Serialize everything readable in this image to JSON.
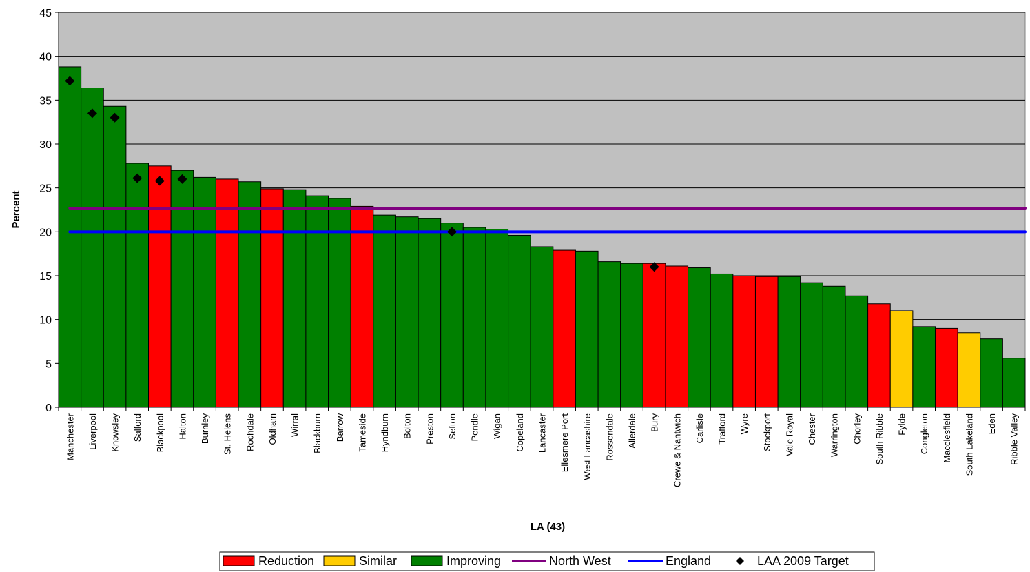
{
  "chart_data": {
    "type": "bar",
    "title": "",
    "xlabel": "LA (43)",
    "ylabel": "Percent",
    "ylim": [
      0,
      45
    ],
    "yticks": [
      0,
      5,
      10,
      15,
      20,
      25,
      30,
      35,
      40,
      45
    ],
    "grid": true,
    "legend_position": "bottom",
    "categories": [
      "Manchester",
      "Liverpool",
      "Knowsley",
      "Salford",
      "Blackpool",
      "Halton",
      "Burnley",
      "St. Helens",
      "Rochdale",
      "Oldham",
      "Wirral",
      "Blackburn",
      "Barrow",
      "Tameside",
      "Hyndburn",
      "Bolton",
      "Preston",
      "Sefton",
      "Pendle",
      "Wigan",
      "Copeland",
      "Lancaster",
      "Ellesmere Port",
      "West Lancashire",
      "Rossendale",
      "Allerdale",
      "Bury",
      "Crewe & Nantwich",
      "Carlisle",
      "Trafford",
      "Wyre",
      "Stockport",
      "Vale Royal",
      "Chester",
      "Warrington",
      "Chorley",
      "South Ribble",
      "Fylde",
      "Congleton",
      "Macclesfield",
      "South Lakeland",
      "Eden",
      "Ribble Valley"
    ],
    "values": [
      38.8,
      36.4,
      34.3,
      27.8,
      27.5,
      27.0,
      26.2,
      26.0,
      25.7,
      24.9,
      24.8,
      24.1,
      23.8,
      22.9,
      21.9,
      21.7,
      21.5,
      21.0,
      20.5,
      20.3,
      19.6,
      18.3,
      17.9,
      17.8,
      16.6,
      16.4,
      16.4,
      16.1,
      15.9,
      15.2,
      15.0,
      14.9,
      14.9,
      14.2,
      13.8,
      12.7,
      11.8,
      11.0,
      9.2,
      9.0,
      8.5,
      7.8,
      5.6
    ],
    "status": [
      "Improving",
      "Improving",
      "Improving",
      "Improving",
      "Reduction",
      "Improving",
      "Improving",
      "Reduction",
      "Improving",
      "Reduction",
      "Improving",
      "Improving",
      "Improving",
      "Reduction",
      "Improving",
      "Improving",
      "Improving",
      "Improving",
      "Improving",
      "Improving",
      "Improving",
      "Improving",
      "Reduction",
      "Improving",
      "Improving",
      "Improving",
      "Reduction",
      "Reduction",
      "Improving",
      "Improving",
      "Reduction",
      "Reduction",
      "Improving",
      "Improving",
      "Improving",
      "Improving",
      "Reduction",
      "Similar",
      "Improving",
      "Reduction",
      "Similar",
      "Improving",
      "Improving"
    ],
    "status_colors": {
      "Reduction": "#ff0000",
      "Similar": "#ffcc00",
      "Improving": "#008000"
    },
    "reference_lines": [
      {
        "name": "North West",
        "value": 22.7,
        "color": "#800080"
      },
      {
        "name": "England",
        "value": 20.0,
        "color": "#0000ff"
      }
    ],
    "targets": {
      "name": "LAA 2009 Target",
      "points": [
        {
          "category": "Manchester",
          "value": 37.2
        },
        {
          "category": "Liverpool",
          "value": 33.5
        },
        {
          "category": "Knowsley",
          "value": 33.0
        },
        {
          "category": "Salford",
          "value": 26.1
        },
        {
          "category": "Blackpool",
          "value": 25.8
        },
        {
          "category": "Halton",
          "value": 26.0
        },
        {
          "category": "Sefton",
          "value": 20.0
        },
        {
          "category": "Bury",
          "value": 16.0
        }
      ]
    },
    "plot_background": "#c0c0c0",
    "legend": [
      {
        "label": "Reduction",
        "kind": "box",
        "color": "#ff0000"
      },
      {
        "label": "Similar",
        "kind": "box",
        "color": "#ffcc00"
      },
      {
        "label": "Improving",
        "kind": "box",
        "color": "#008000"
      },
      {
        "label": "North West",
        "kind": "line",
        "color": "#800080"
      },
      {
        "label": "England",
        "kind": "line",
        "color": "#0000ff"
      },
      {
        "label": "LAA 2009 Target",
        "kind": "diamond",
        "color": "#000000"
      }
    ]
  }
}
